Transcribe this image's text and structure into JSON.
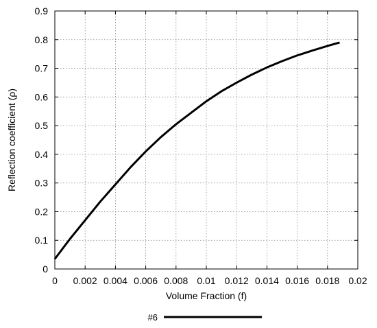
{
  "chart_data": {
    "type": "line",
    "xlabel": "Volume Fraction (f)",
    "ylabel": "Reflection coefficient (ρ)",
    "xlim": [
      0,
      0.02
    ],
    "ylim": [
      0,
      0.9
    ],
    "xticks": [
      "0",
      "0.002",
      "0.004",
      "0.006",
      "0.008",
      "0.01",
      "0.012",
      "0.014",
      "0.016",
      "0.018",
      "0.02"
    ],
    "yticks": [
      "0",
      "0.1",
      "0.2",
      "0.3",
      "0.4",
      "0.5",
      "0.6",
      "0.7",
      "0.8",
      "0.9"
    ],
    "grid": true,
    "legend_position": "bottom-center",
    "series": [
      {
        "name": "#6",
        "color": "#000000",
        "x": [
          0,
          0.001,
          0.002,
          0.003,
          0.004,
          0.005,
          0.006,
          0.007,
          0.008,
          0.009,
          0.01,
          0.011,
          0.012,
          0.013,
          0.014,
          0.015,
          0.016,
          0.017,
          0.018,
          0.0188
        ],
        "y": [
          0.035,
          0.105,
          0.17,
          0.235,
          0.295,
          0.355,
          0.41,
          0.46,
          0.505,
          0.545,
          0.585,
          0.62,
          0.65,
          0.678,
          0.703,
          0.725,
          0.745,
          0.762,
          0.778,
          0.79
        ]
      }
    ]
  }
}
